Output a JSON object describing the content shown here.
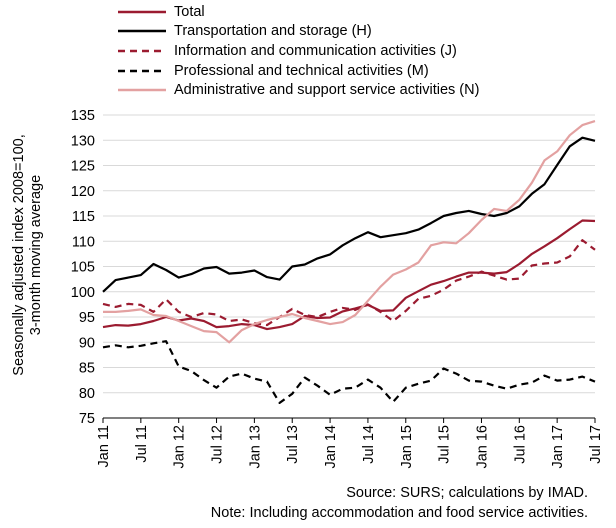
{
  "chart_data": {
    "type": "line",
    "ylabel_line1": "Seasonally adjusted index 2008=100,",
    "ylabel_line2": "3-month moving average",
    "ylim": [
      75,
      135
    ],
    "yticks": [
      75,
      80,
      85,
      90,
      95,
      100,
      105,
      110,
      115,
      120,
      125,
      130,
      135
    ],
    "x_range": [
      "Jan 2011",
      "Jul 2017"
    ],
    "xticks": [
      "Jan 11",
      "Jul 11",
      "Jan 12",
      "Jul 12",
      "Jan 13",
      "Jul 13",
      "Jan 14",
      "Jul 14",
      "Jan 15",
      "Jul 15",
      "Jan 16",
      "Jul 16",
      "Jan 17",
      "Jul 17"
    ],
    "grid": "horizontal",
    "legend_position": "top",
    "series": [
      {
        "name": "Total",
        "color": "#9b1b30",
        "dash": "solid",
        "values": [
          [
            "Jan 2011",
            93.0
          ],
          [
            "Mar 2011",
            93.4
          ],
          [
            "May 2011",
            93.3
          ],
          [
            "Jul 2011",
            93.6
          ],
          [
            "Sep 2011",
            94.2
          ],
          [
            "Nov 2011",
            95.0
          ],
          [
            "Jan 2012",
            94.3
          ],
          [
            "Mar 2012",
            94.7
          ],
          [
            "May 2012",
            94.2
          ],
          [
            "Jul 2012",
            93.0
          ],
          [
            "Sep 2012",
            93.2
          ],
          [
            "Nov 2012",
            93.6
          ],
          [
            "Jan 2013",
            93.4
          ],
          [
            "Mar 2013",
            92.6
          ],
          [
            "May 2013",
            93.0
          ],
          [
            "Jul 2013",
            93.6
          ],
          [
            "Sep 2013",
            95.2
          ],
          [
            "Nov 2013",
            94.8
          ],
          [
            "Jan 2014",
            94.9
          ],
          [
            "Mar 2014",
            96.1
          ],
          [
            "May 2014",
            96.7
          ],
          [
            "Jul 2014",
            97.4
          ],
          [
            "Sep 2014",
            96.2
          ],
          [
            "Nov 2014",
            96.3
          ],
          [
            "Jan 2015",
            98.8
          ],
          [
            "Mar 2015",
            100.1
          ],
          [
            "May 2015",
            101.4
          ],
          [
            "Jul 2015",
            102.1
          ],
          [
            "Sep 2015",
            103.0
          ],
          [
            "Nov 2015",
            103.8
          ],
          [
            "Jan 2016",
            103.8
          ],
          [
            "Mar 2016",
            103.6
          ],
          [
            "May 2016",
            103.9
          ],
          [
            "Jul 2016",
            105.5
          ],
          [
            "Sep 2016",
            107.5
          ],
          [
            "Nov 2016",
            109.0
          ],
          [
            "Jan 2017",
            110.6
          ],
          [
            "Mar 2017",
            112.4
          ],
          [
            "May 2017",
            114.1
          ],
          [
            "Jul 2017",
            114.0
          ]
        ]
      },
      {
        "name": "Transportation and storage (H)",
        "color": "#000000",
        "dash": "solid",
        "values": [
          [
            "Jan 2011",
            100.0
          ],
          [
            "Mar 2011",
            102.3
          ],
          [
            "May 2011",
            102.8
          ],
          [
            "Jul 2011",
            103.3
          ],
          [
            "Sep 2011",
            105.5
          ],
          [
            "Nov 2011",
            104.3
          ],
          [
            "Jan 2012",
            102.8
          ],
          [
            "Mar 2012",
            103.5
          ],
          [
            "May 2012",
            104.6
          ],
          [
            "Jul 2012",
            104.9
          ],
          [
            "Sep 2012",
            103.6
          ],
          [
            "Nov 2012",
            103.8
          ],
          [
            "Jan 2013",
            104.2
          ],
          [
            "Mar 2013",
            102.9
          ],
          [
            "May 2013",
            102.4
          ],
          [
            "Jul 2013",
            105.0
          ],
          [
            "Sep 2013",
            105.4
          ],
          [
            "Nov 2013",
            106.6
          ],
          [
            "Jan 2014",
            107.4
          ],
          [
            "Mar 2014",
            109.2
          ],
          [
            "May 2014",
            110.6
          ],
          [
            "Jul 2014",
            111.8
          ],
          [
            "Sep 2014",
            110.8
          ],
          [
            "Nov 2014",
            111.2
          ],
          [
            "Jan 2015",
            111.6
          ],
          [
            "Mar 2015",
            112.3
          ],
          [
            "May 2015",
            113.6
          ],
          [
            "Jul 2015",
            115.0
          ],
          [
            "Sep 2015",
            115.6
          ],
          [
            "Nov 2015",
            116.0
          ],
          [
            "Jan 2016",
            115.4
          ],
          [
            "Mar 2016",
            115.0
          ],
          [
            "May 2016",
            115.6
          ],
          [
            "Jul 2016",
            116.9
          ],
          [
            "Sep 2016",
            119.4
          ],
          [
            "Nov 2016",
            121.3
          ],
          [
            "Jan 2017",
            125.1
          ],
          [
            "Mar 2017",
            128.8
          ],
          [
            "May 2017",
            130.5
          ],
          [
            "Jul 2017",
            129.9
          ]
        ]
      },
      {
        "name": "Information and communication activities (J)",
        "color": "#9b1b30",
        "dash": "dashed",
        "values": [
          [
            "Jan 2011",
            97.6
          ],
          [
            "Mar 2011",
            97.0
          ],
          [
            "May 2011",
            97.6
          ],
          [
            "Jul 2011",
            97.4
          ],
          [
            "Sep 2011",
            96.0
          ],
          [
            "Nov 2011",
            98.5
          ],
          [
            "Jan 2012",
            96.0
          ],
          [
            "Mar 2012",
            95.0
          ],
          [
            "May 2012",
            95.8
          ],
          [
            "Jul 2012",
            95.5
          ],
          [
            "Sep 2012",
            94.2
          ],
          [
            "Nov 2012",
            94.5
          ],
          [
            "Jan 2013",
            93.8
          ],
          [
            "Mar 2013",
            93.4
          ],
          [
            "May 2013",
            95.0
          ],
          [
            "Jul 2013",
            96.6
          ],
          [
            "Sep 2013",
            95.4
          ],
          [
            "Nov 2013",
            95.0
          ],
          [
            "Jan 2014",
            96.0
          ],
          [
            "Mar 2014",
            96.8
          ],
          [
            "May 2014",
            96.4
          ],
          [
            "Jul 2014",
            97.5
          ],
          [
            "Sep 2014",
            96.0
          ],
          [
            "Nov 2014",
            94.2
          ],
          [
            "Jan 2015",
            96.2
          ],
          [
            "Mar 2015",
            98.6
          ],
          [
            "May 2015",
            99.2
          ],
          [
            "Jul 2015",
            100.4
          ],
          [
            "Sep 2015",
            102.2
          ],
          [
            "Nov 2015",
            103.0
          ],
          [
            "Jan 2016",
            104.0
          ],
          [
            "Mar 2016",
            103.2
          ],
          [
            "May 2016",
            102.4
          ],
          [
            "Jul 2016",
            102.6
          ],
          [
            "Sep 2016",
            105.2
          ],
          [
            "Nov 2016",
            105.6
          ],
          [
            "Jan 2017",
            105.8
          ],
          [
            "Mar 2017",
            107.0
          ],
          [
            "May 2017",
            110.2
          ],
          [
            "Jul 2017",
            108.3
          ]
        ]
      },
      {
        "name": "Professional and technical activities (M)",
        "color": "#000000",
        "dash": "dashed",
        "values": [
          [
            "Jan 2011",
            89.0
          ],
          [
            "Mar 2011",
            89.4
          ],
          [
            "May 2011",
            89.0
          ],
          [
            "Jul 2011",
            89.3
          ],
          [
            "Sep 2011",
            89.8
          ],
          [
            "Nov 2011",
            90.2
          ],
          [
            "Jan 2012",
            85.2
          ],
          [
            "Mar 2012",
            84.3
          ],
          [
            "May 2012",
            82.5
          ],
          [
            "Jul 2012",
            81.0
          ],
          [
            "Sep 2012",
            83.2
          ],
          [
            "Nov 2012",
            83.8
          ],
          [
            "Jan 2013",
            82.8
          ],
          [
            "Mar 2013",
            82.2
          ],
          [
            "May 2013",
            78.0
          ],
          [
            "Jul 2013",
            79.8
          ],
          [
            "Sep 2013",
            83.0
          ],
          [
            "Nov 2013",
            81.4
          ],
          [
            "Jan 2014",
            79.6
          ],
          [
            "Mar 2014",
            80.8
          ],
          [
            "May 2014",
            81.0
          ],
          [
            "Jul 2014",
            82.6
          ],
          [
            "Sep 2014",
            81.0
          ],
          [
            "Nov 2014",
            78.2
          ],
          [
            "Jan 2015",
            81.0
          ],
          [
            "Mar 2015",
            81.8
          ],
          [
            "May 2015",
            82.4
          ],
          [
            "Jul 2015",
            84.8
          ],
          [
            "Sep 2015",
            83.8
          ],
          [
            "Nov 2015",
            82.4
          ],
          [
            "Jan 2016",
            82.2
          ],
          [
            "Mar 2016",
            81.4
          ],
          [
            "May 2016",
            80.8
          ],
          [
            "Jul 2016",
            81.6
          ],
          [
            "Sep 2016",
            82.0
          ],
          [
            "Nov 2016",
            83.4
          ],
          [
            "Jan 2017",
            82.4
          ],
          [
            "Mar 2017",
            82.6
          ],
          [
            "May 2017",
            83.2
          ],
          [
            "Jul 2017",
            82.2
          ]
        ]
      },
      {
        "name": "Administrative and support service activities (N)",
        "color": "#e3a1a1",
        "dash": "solid",
        "values": [
          [
            "Jan 2011",
            96.0
          ],
          [
            "Mar 2011",
            96.0
          ],
          [
            "May 2011",
            96.2
          ],
          [
            "Jul 2011",
            96.5
          ],
          [
            "Sep 2011",
            95.4
          ],
          [
            "Nov 2011",
            95.2
          ],
          [
            "Jan 2012",
            94.2
          ],
          [
            "Mar 2012",
            93.2
          ],
          [
            "May 2012",
            92.2
          ],
          [
            "Jul 2012",
            92.0
          ],
          [
            "Sep 2012",
            90.0
          ],
          [
            "Nov 2012",
            92.4
          ],
          [
            "Jan 2013",
            93.6
          ],
          [
            "Mar 2013",
            94.4
          ],
          [
            "May 2013",
            95.0
          ],
          [
            "Jul 2013",
            95.6
          ],
          [
            "Sep 2013",
            94.8
          ],
          [
            "Nov 2013",
            94.2
          ],
          [
            "Jan 2014",
            93.6
          ],
          [
            "Mar 2014",
            94.0
          ],
          [
            "May 2014",
            95.4
          ],
          [
            "Jul 2014",
            98.2
          ],
          [
            "Sep 2014",
            101.0
          ],
          [
            "Nov 2014",
            103.4
          ],
          [
            "Jan 2015",
            104.4
          ],
          [
            "Mar 2015",
            105.8
          ],
          [
            "May 2015",
            109.2
          ],
          [
            "Jul 2015",
            109.8
          ],
          [
            "Sep 2015",
            109.6
          ],
          [
            "Nov 2015",
            111.6
          ],
          [
            "Jan 2016",
            114.2
          ],
          [
            "Mar 2016",
            116.4
          ],
          [
            "May 2016",
            116.0
          ],
          [
            "Jul 2016",
            118.2
          ],
          [
            "Sep 2016",
            121.6
          ],
          [
            "Nov 2016",
            126.0
          ],
          [
            "Jan 2017",
            127.8
          ],
          [
            "Mar 2017",
            131.0
          ],
          [
            "May 2017",
            133.0
          ],
          [
            "Jul 2017",
            133.8
          ]
        ]
      }
    ]
  },
  "notes": {
    "source": "Source: SURS; calculations by IMAD.",
    "note": "Note: Including accommodation and food service activities."
  }
}
